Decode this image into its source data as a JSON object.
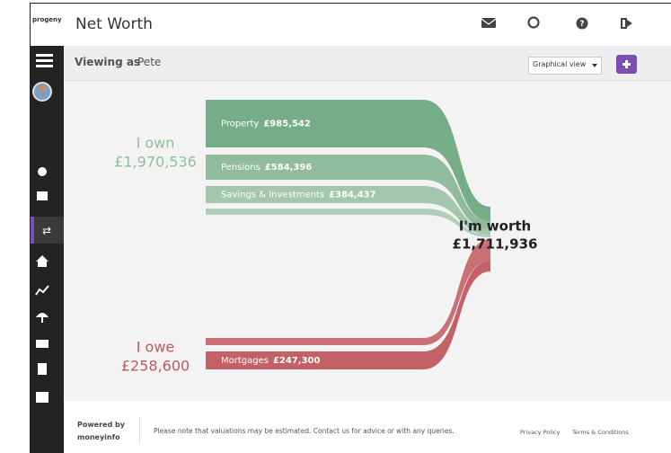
{
  "header": {
    "logo": "progeny",
    "title": "Net Worth"
  },
  "subheader": {
    "viewing_label": "Viewing as",
    "user": "Pete",
    "view_select": "Graphical view"
  },
  "graph": {
    "own": {
      "label": "I own",
      "total": "£1,970,536",
      "items": [
        {
          "name": "Property",
          "value": "£985,542"
        },
        {
          "name": "Pensions",
          "value": "£584,396"
        },
        {
          "name": "Savings & Investments",
          "value": "£384,437"
        }
      ]
    },
    "worth": {
      "label": "I'm worth",
      "total": "£1,711,936"
    },
    "owe": {
      "label": "I owe",
      "total": "£258,600",
      "items": [
        {
          "name": "Mortgages",
          "value": "£247,300"
        }
      ]
    }
  },
  "footer": {
    "powered_by": "Powered by",
    "brand": "moneyinfo",
    "note": "Please note that valuations may be estimated. Contact us for advice or with any queries.",
    "links": [
      "Privacy Policy",
      "Terms & Conditions"
    ]
  }
}
